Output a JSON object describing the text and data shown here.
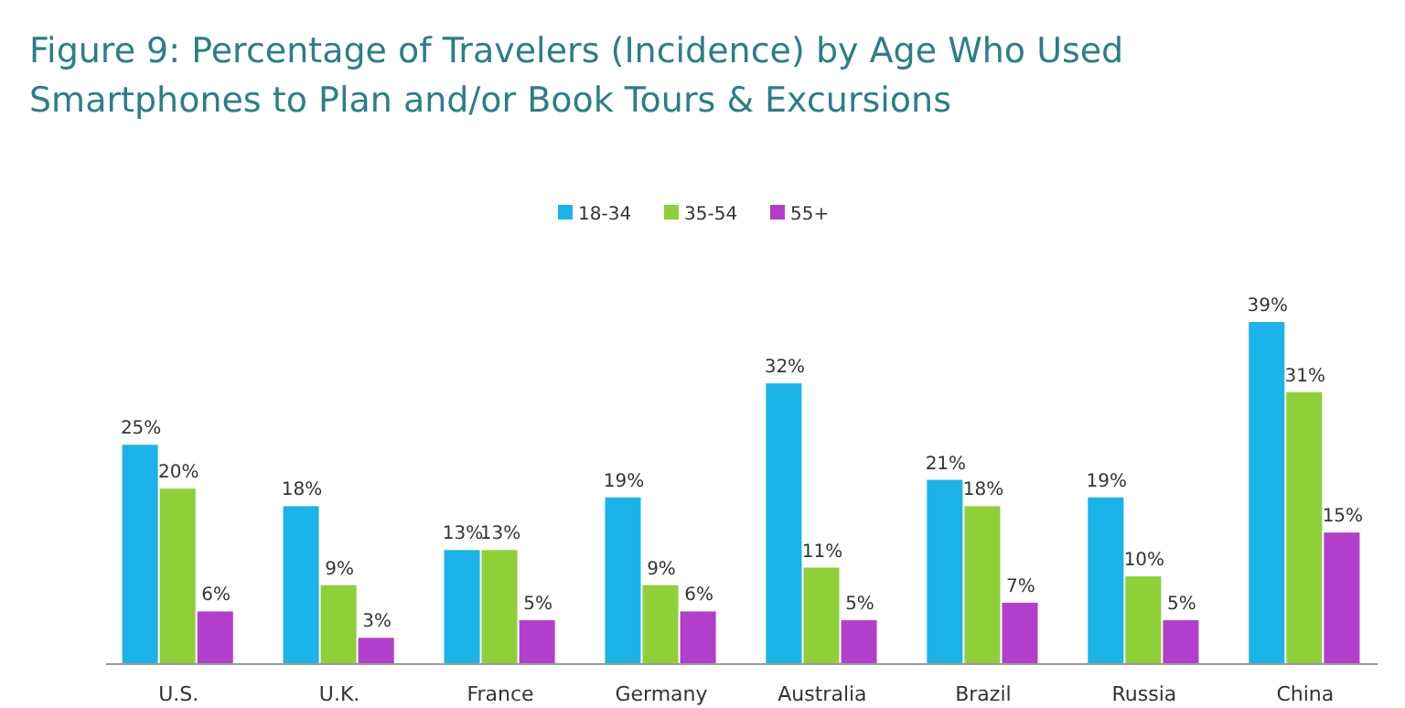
{
  "chart_data": {
    "type": "bar",
    "title": "Figure 9: Percentage of Travelers (Incidence) by Age Who Used Smartphones to Plan and/or Book Tours & Excursions",
    "categories": [
      "U.S.",
      "U.K.",
      "France",
      "Germany",
      "Australia",
      "Brazil",
      "Russia",
      "China"
    ],
    "series": [
      {
        "name": "18-34",
        "color": "#1cb3e8",
        "values": [
          25,
          18,
          13,
          19,
          32,
          21,
          19,
          39
        ],
        "value_labels": [
          "25%",
          "18%",
          "13%",
          "19%",
          "32%",
          "21%",
          "19%",
          "39%"
        ]
      },
      {
        "name": "35-54",
        "color": "#8ecf3a",
        "values": [
          20,
          9,
          13,
          9,
          11,
          18,
          10,
          31
        ],
        "value_labels": [
          "20%",
          "9%",
          "13%",
          "9%",
          "11%",
          "18%",
          "10%",
          "31%"
        ]
      },
      {
        "name": "55+",
        "color": "#b23fcc",
        "values": [
          6,
          3,
          5,
          6,
          5,
          7,
          5,
          15
        ],
        "value_labels": [
          "6%",
          "3%",
          "5%",
          "6%",
          "5%",
          "7%",
          "5%",
          "15%"
        ]
      }
    ],
    "legend": "top",
    "grid": false
  }
}
